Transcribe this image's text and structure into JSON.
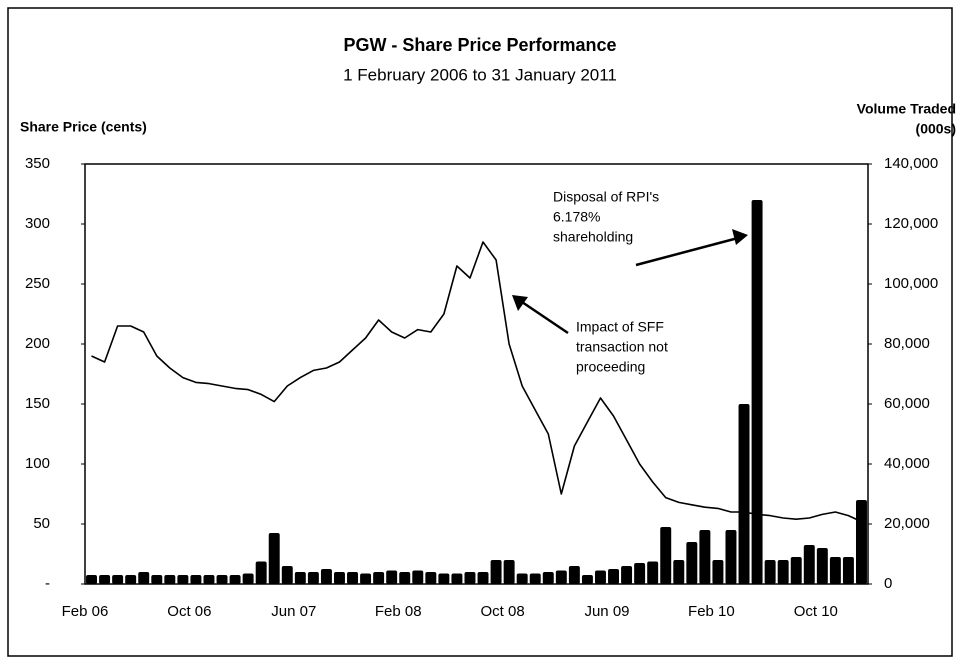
{
  "chart_data": {
    "type": "bar-line",
    "title": "PGW  - Share Price Performance",
    "subtitle": "1 February 2006 to 31 January 2011",
    "y_label": "Share Price (cents)",
    "y2_label": [
      "Volume Traded",
      "(000s)"
    ],
    "categories": [
      "Feb 06",
      null,
      null,
      null,
      null,
      null,
      null,
      null,
      "Oct 06",
      null,
      null,
      null,
      null,
      null,
      null,
      null,
      "Jun 07",
      null,
      null,
      null,
      null,
      null,
      null,
      null,
      "Feb 08",
      null,
      null,
      null,
      null,
      null,
      null,
      null,
      "Oct 08",
      null,
      null,
      null,
      null,
      null,
      null,
      null,
      "Jun 09",
      null,
      null,
      null,
      null,
      null,
      null,
      null,
      "Feb 10",
      null,
      null,
      null,
      null,
      null,
      null,
      null,
      "Oct 10",
      null,
      null,
      null
    ],
    "series": [
      {
        "kind": "line",
        "color": "#000000",
        "values": [
          190,
          185,
          215,
          215,
          210,
          190,
          180,
          172,
          168,
          167,
          165,
          163,
          162,
          158,
          152,
          165,
          172,
          178,
          180,
          185,
          195,
          205,
          220,
          210,
          205,
          212,
          210,
          225,
          265,
          255,
          285,
          270,
          200,
          165,
          145,
          125,
          75,
          115,
          135,
          155,
          140,
          120,
          100,
          85,
          72,
          68,
          66,
          64,
          63,
          60,
          60,
          58,
          57,
          55,
          54,
          55,
          58,
          60,
          57,
          52
        ]
      },
      {
        "kind": "bar",
        "axis": "y2",
        "color": "#000000",
        "values": [
          3000,
          3000,
          3000,
          3000,
          4000,
          3000,
          3000,
          3000,
          3000,
          3000,
          3000,
          3000,
          3500,
          7500,
          17000,
          6000,
          4000,
          4000,
          5000,
          4000,
          4000,
          3500,
          4000,
          4500,
          4000,
          4500,
          4000,
          3500,
          3500,
          4000,
          4000,
          8000,
          8000,
          3500,
          3500,
          4000,
          4500,
          6000,
          3000,
          4500,
          5000,
          6000,
          7000,
          7500,
          19000,
          8000,
          14000,
          18000,
          8000,
          18000,
          60000,
          128000,
          8000,
          8000,
          9000,
          13000,
          12000,
          9000,
          9000,
          28000
        ]
      }
    ],
    "ylim": [
      0,
      350
    ],
    "yticks": [
      {
        "value": 0,
        "label": "-"
      },
      50,
      100,
      150,
      200,
      250,
      300,
      350
    ],
    "y2lim": [
      0,
      140000
    ],
    "y2ticks": [
      0,
      {
        "value": 20000,
        "label": "20,000"
      },
      {
        "value": 40000,
        "label": "40,000"
      },
      {
        "value": 60000,
        "label": "60,000"
      },
      {
        "value": 80000,
        "label": "80,000"
      },
      {
        "value": 100000,
        "label": "100,000"
      },
      {
        "value": 120000,
        "label": "120,000"
      },
      {
        "value": 140000,
        "label": "140,000"
      }
    ],
    "annotations": [
      {
        "lines": [
          "Disposal of RPI's",
          "6.178%",
          "shareholding"
        ]
      },
      {
        "lines": [
          "Impact of SFF",
          "transaction not",
          "proceeding"
        ]
      }
    ]
  }
}
